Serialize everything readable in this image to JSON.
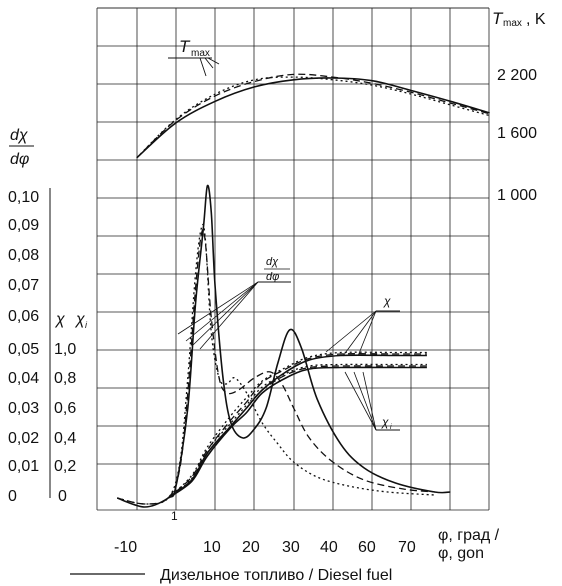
{
  "chart_data": {
    "type": "line",
    "axes": {
      "x": {
        "label_line1": "φ, град /",
        "label_line2": "φ, gon",
        "ticks": [
          "-10",
          "10",
          "20",
          "30",
          "40",
          "60",
          "70"
        ],
        "extra_tick": "1"
      },
      "tmax_axis": {
        "label_symbol": "T",
        "label_sub": "max",
        "label_unit": ", K",
        "ticks": [
          "2 200",
          "1 600",
          "1 000"
        ]
      },
      "rate_axis": {
        "label_num": "dχ",
        "label_den": "dφ",
        "ticks": [
          "0,10",
          "0,09",
          "0,08",
          "0,07",
          "0,06",
          "0,05",
          "0,04",
          "0,03",
          "0,02",
          "0,01",
          "0"
        ]
      },
      "fraction_axis": {
        "label_chi": "χ",
        "label_chi_i": "χ",
        "label_chi_i_sub": "i",
        "ticks": [
          "1,0",
          "0,8",
          "0,6",
          "0,4",
          "0,2",
          "0"
        ]
      }
    },
    "annotations": {
      "tmax": {
        "symbol": "T",
        "sub": "max"
      },
      "rate": {
        "num": "dχ",
        "den": "dφ"
      },
      "chi": "χ",
      "chi_i": {
        "symbol": "χ",
        "sub": "i"
      }
    },
    "legend": {
      "solid_label": "Дизельное топливо / Diesel fuel"
    },
    "series": [
      {
        "name": "Дизельное топливо / Diesel fuel",
        "style": "solid",
        "tmax": [
          [
            -10,
            1430
          ],
          [
            0,
            1820
          ],
          [
            10,
            2060
          ],
          [
            20,
            2220
          ],
          [
            30,
            2300
          ],
          [
            40,
            2320
          ],
          [
            50,
            2290
          ],
          [
            60,
            2180
          ],
          [
            70,
            2060
          ],
          [
            80,
            1930
          ]
        ],
        "rate": [
          [
            -15,
            0.0
          ],
          [
            -8,
            -0.003
          ],
          [
            -2,
            0.0
          ],
          [
            0,
            0.004
          ],
          [
            3,
            0.03
          ],
          [
            5,
            0.065
          ],
          [
            7,
            0.09
          ],
          [
            8,
            0.104
          ],
          [
            9,
            0.095
          ],
          [
            10,
            0.07
          ],
          [
            12,
            0.04
          ],
          [
            14,
            0.025
          ],
          [
            17,
            0.02
          ],
          [
            20,
            0.023
          ],
          [
            23,
            0.03
          ],
          [
            26,
            0.045
          ],
          [
            29,
            0.056
          ],
          [
            32,
            0.05
          ],
          [
            36,
            0.033
          ],
          [
            42,
            0.018
          ],
          [
            48,
            0.01
          ],
          [
            56,
            0.005
          ],
          [
            66,
            0.002
          ],
          [
            70,
            0.002
          ]
        ],
        "chi": [
          [
            -2,
            0.0
          ],
          [
            4,
            0.12
          ],
          [
            8,
            0.3
          ],
          [
            14,
            0.48
          ],
          [
            18,
            0.6
          ],
          [
            22,
            0.72
          ],
          [
            28,
            0.84
          ],
          [
            34,
            0.92
          ],
          [
            42,
            0.95
          ],
          [
            56,
            0.95
          ],
          [
            64,
            0.95
          ]
        ],
        "chi_i": [
          [
            -2,
            0.0
          ],
          [
            4,
            0.11
          ],
          [
            8,
            0.28
          ],
          [
            14,
            0.47
          ],
          [
            18,
            0.57
          ],
          [
            22,
            0.7
          ],
          [
            28,
            0.8
          ],
          [
            34,
            0.86
          ],
          [
            42,
            0.87
          ],
          [
            56,
            0.87
          ],
          [
            64,
            0.87
          ]
        ]
      },
      {
        "name": "",
        "style": "dashed",
        "tmax": [
          [
            -10,
            1430
          ],
          [
            0,
            1850
          ],
          [
            10,
            2120
          ],
          [
            20,
            2280
          ],
          [
            30,
            2360
          ],
          [
            40,
            2330
          ],
          [
            50,
            2260
          ],
          [
            60,
            2160
          ],
          [
            70,
            2040
          ],
          [
            80,
            1920
          ]
        ],
        "rate": [
          [
            -15,
            0.0
          ],
          [
            -8,
            -0.002
          ],
          [
            -2,
            0.0
          ],
          [
            1,
            0.01
          ],
          [
            3,
            0.035
          ],
          [
            5,
            0.07
          ],
          [
            6.5,
            0.088
          ],
          [
            7.5,
            0.085
          ],
          [
            9,
            0.06
          ],
          [
            11,
            0.04
          ],
          [
            13,
            0.035
          ],
          [
            16,
            0.036
          ],
          [
            20,
            0.04
          ],
          [
            24,
            0.042
          ],
          [
            27,
            0.038
          ],
          [
            30,
            0.03
          ],
          [
            34,
            0.02
          ],
          [
            40,
            0.012
          ],
          [
            48,
            0.006
          ],
          [
            58,
            0.003
          ],
          [
            66,
            0.002
          ]
        ],
        "chi": [
          [
            -2,
            0.0
          ],
          [
            4,
            0.14
          ],
          [
            8,
            0.32
          ],
          [
            14,
            0.52
          ],
          [
            18,
            0.64
          ],
          [
            22,
            0.77
          ],
          [
            28,
            0.86
          ],
          [
            34,
            0.93
          ],
          [
            42,
            0.96
          ],
          [
            56,
            0.96
          ],
          [
            64,
            0.96
          ]
        ],
        "chi_i": [
          [
            -2,
            0.0
          ],
          [
            4,
            0.12
          ],
          [
            8,
            0.3
          ],
          [
            14,
            0.48
          ],
          [
            18,
            0.6
          ],
          [
            22,
            0.72
          ],
          [
            28,
            0.82
          ],
          [
            34,
            0.87
          ],
          [
            42,
            0.88
          ],
          [
            56,
            0.88
          ],
          [
            64,
            0.88
          ]
        ]
      },
      {
        "name": "",
        "style": "dotted",
        "tmax": [
          [
            -10,
            1430
          ],
          [
            0,
            1860
          ],
          [
            10,
            2140
          ],
          [
            20,
            2300
          ],
          [
            30,
            2330
          ],
          [
            40,
            2300
          ],
          [
            50,
            2240
          ],
          [
            60,
            2140
          ],
          [
            70,
            2020
          ],
          [
            80,
            1900
          ]
        ],
        "rate": [
          [
            -15,
            0.0
          ],
          [
            -8,
            -0.002
          ],
          [
            -2,
            0.0
          ],
          [
            1,
            0.012
          ],
          [
            3,
            0.04
          ],
          [
            5,
            0.075
          ],
          [
            6.5,
            0.09
          ],
          [
            7.5,
            0.086
          ],
          [
            9,
            0.055
          ],
          [
            11,
            0.04
          ],
          [
            13,
            0.038
          ],
          [
            15,
            0.04
          ],
          [
            18,
            0.035
          ],
          [
            22,
            0.025
          ],
          [
            26,
            0.018
          ],
          [
            30,
            0.012
          ],
          [
            36,
            0.007
          ],
          [
            44,
            0.004
          ],
          [
            54,
            0.002
          ],
          [
            66,
            0.001
          ]
        ],
        "chi": [
          [
            -2,
            0.0
          ],
          [
            4,
            0.15
          ],
          [
            8,
            0.34
          ],
          [
            14,
            0.55
          ],
          [
            18,
            0.67
          ],
          [
            22,
            0.78
          ],
          [
            28,
            0.87
          ],
          [
            34,
            0.94
          ],
          [
            42,
            0.97
          ],
          [
            56,
            0.97
          ],
          [
            64,
            0.97
          ]
        ],
        "chi_i": [
          [
            -2,
            0.0
          ],
          [
            4,
            0.13
          ],
          [
            8,
            0.32
          ],
          [
            14,
            0.5
          ],
          [
            18,
            0.62
          ],
          [
            22,
            0.74
          ],
          [
            28,
            0.83
          ],
          [
            34,
            0.88
          ],
          [
            42,
            0.89
          ],
          [
            56,
            0.89
          ],
          [
            64,
            0.89
          ]
        ]
      }
    ],
    "grid": true
  }
}
